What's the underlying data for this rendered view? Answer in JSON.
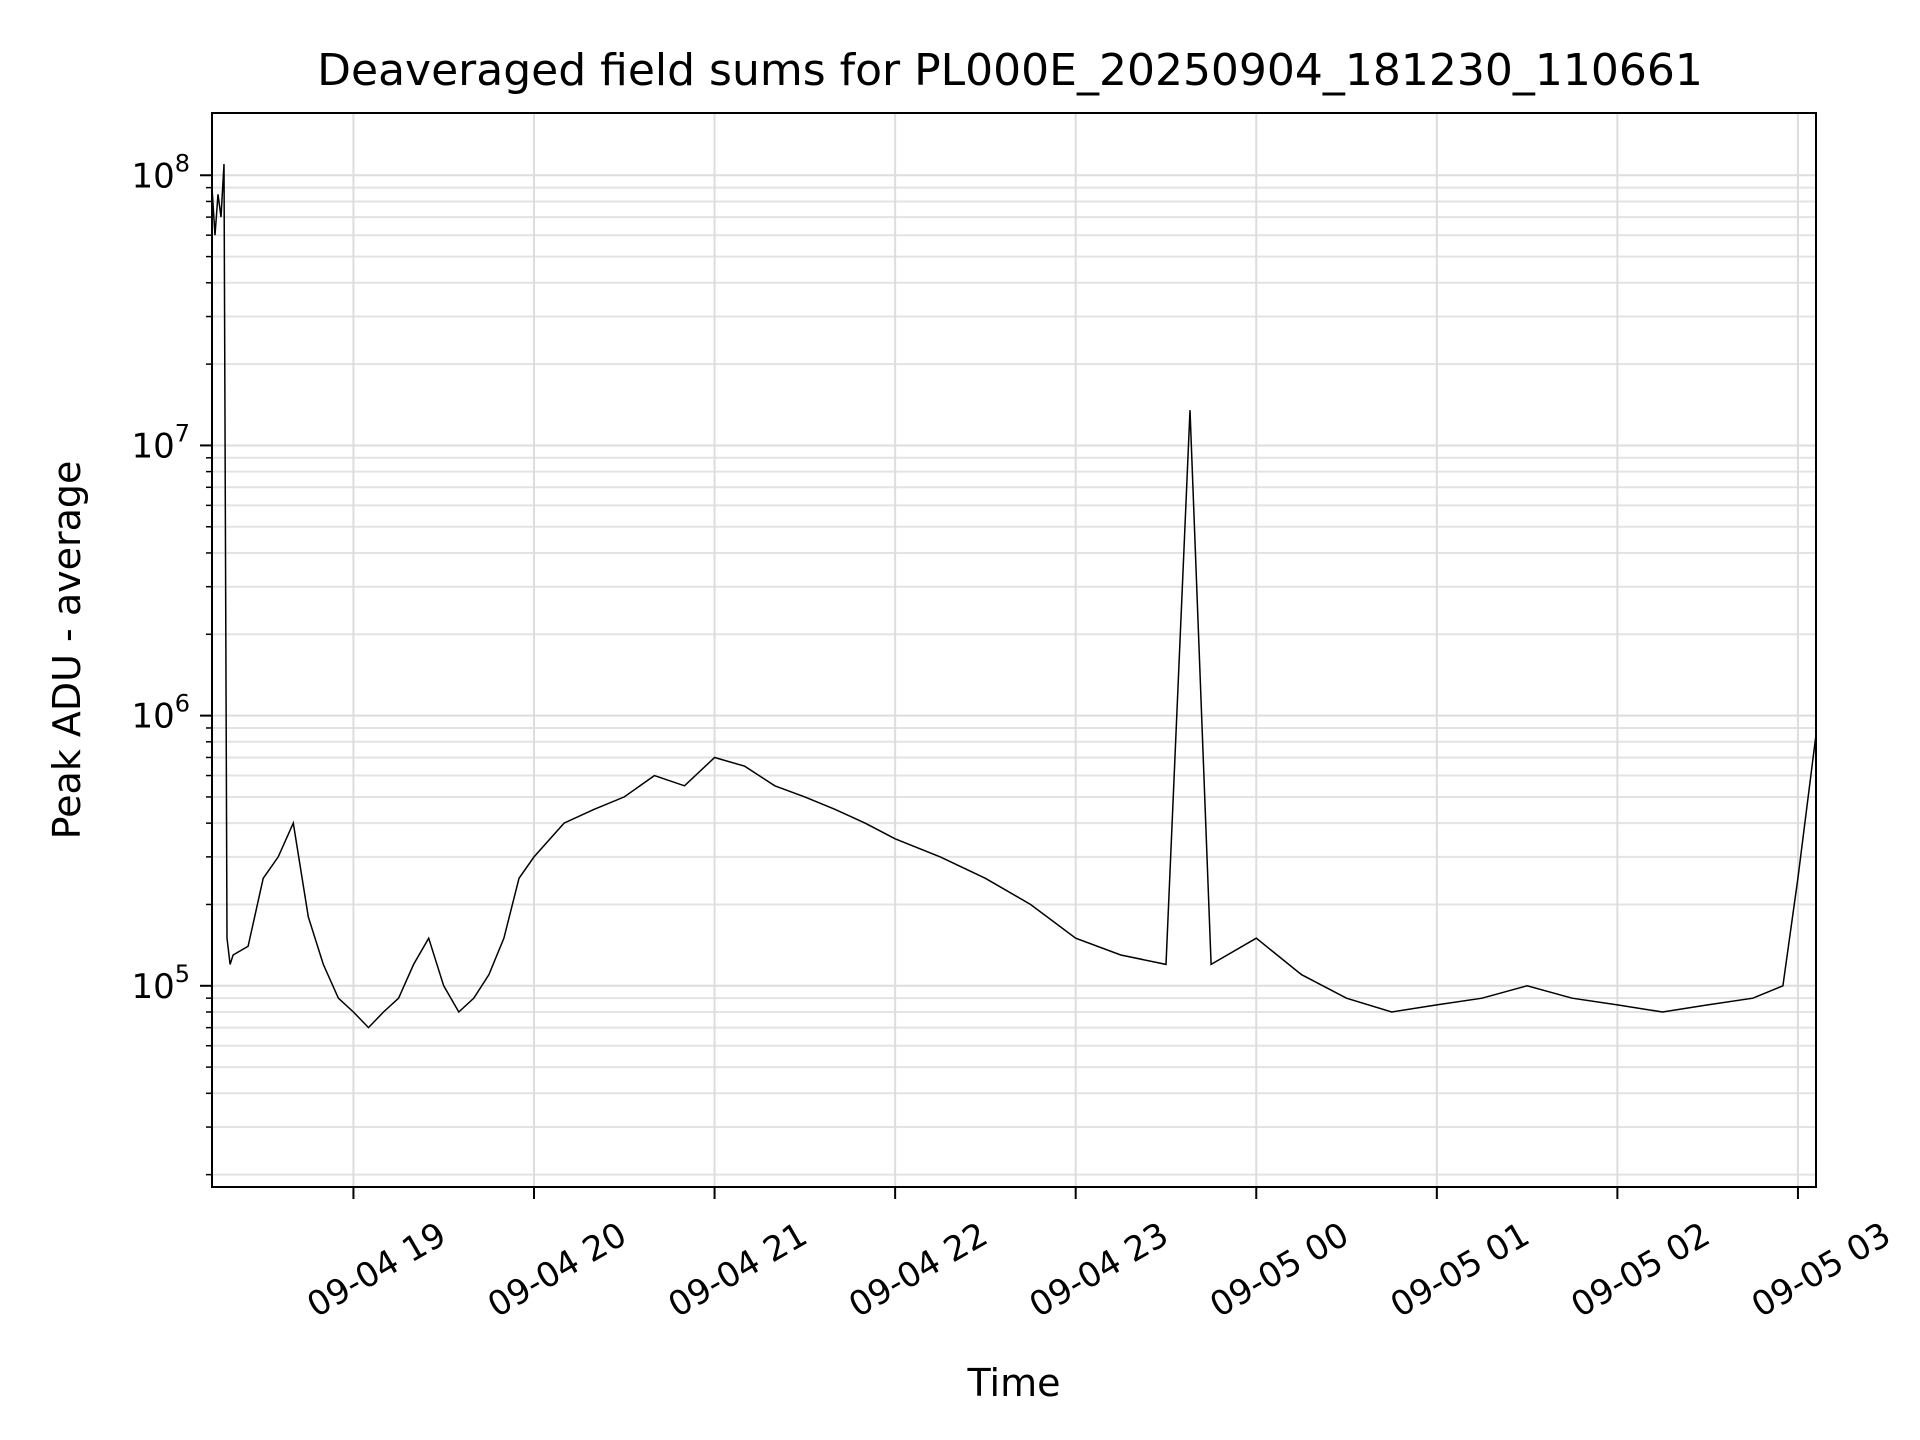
{
  "chart_data": {
    "type": "line",
    "title": "Deaveraged field sums for PL000E_20250904_181230_110661",
    "xlabel": "Time",
    "ylabel": "Peak ADU - average",
    "yscale": "log",
    "ylim": [
      18000,
      170000000
    ],
    "xlim": [
      "2025-09-04 18:13",
      "2025-09-05 03:06"
    ],
    "grid": true,
    "line_color": "#000000",
    "x_ticks": [
      "09-04 19",
      "09-04 20",
      "09-04 21",
      "09-04 22",
      "09-04 23",
      "09-05 00",
      "09-05 01",
      "09-05 02",
      "09-05 03"
    ],
    "y_ticks": [
      {
        "base": "10",
        "exp": "5",
        "value": 100000
      },
      {
        "base": "10",
        "exp": "6",
        "value": 1000000
      },
      {
        "base": "10",
        "exp": "7",
        "value": 10000000
      },
      {
        "base": "10",
        "exp": "8",
        "value": 100000000
      }
    ],
    "series": [
      {
        "x": [
          "2025-09-04 18:13",
          "2025-09-04 18:14",
          "2025-09-04 18:15",
          "2025-09-04 18:16",
          "2025-09-04 18:17",
          "2025-09-04 18:18",
          "2025-09-04 18:19",
          "2025-09-04 18:20",
          "2025-09-04 18:25",
          "2025-09-04 18:30",
          "2025-09-04 18:35",
          "2025-09-04 18:40",
          "2025-09-04 18:45",
          "2025-09-04 18:50",
          "2025-09-04 18:55",
          "2025-09-04 19:00",
          "2025-09-04 19:05",
          "2025-09-04 19:10",
          "2025-09-04 19:15",
          "2025-09-04 19:20",
          "2025-09-04 19:25",
          "2025-09-04 19:30",
          "2025-09-04 19:35",
          "2025-09-04 19:40",
          "2025-09-04 19:45",
          "2025-09-04 19:50",
          "2025-09-04 19:55",
          "2025-09-04 20:00",
          "2025-09-04 20:10",
          "2025-09-04 20:20",
          "2025-09-04 20:30",
          "2025-09-04 20:40",
          "2025-09-04 20:50",
          "2025-09-04 21:00",
          "2025-09-04 21:10",
          "2025-09-04 21:20",
          "2025-09-04 21:30",
          "2025-09-04 21:40",
          "2025-09-04 21:50",
          "2025-09-04 22:00",
          "2025-09-04 22:15",
          "2025-09-04 22:30",
          "2025-09-04 22:45",
          "2025-09-04 23:00",
          "2025-09-04 23:15",
          "2025-09-04 23:30",
          "2025-09-04 23:38",
          "2025-09-04 23:45",
          "2025-09-05 00:00",
          "2025-09-05 00:15",
          "2025-09-05 00:30",
          "2025-09-05 00:45",
          "2025-09-05 01:00",
          "2025-09-05 01:15",
          "2025-09-05 01:30",
          "2025-09-05 01:45",
          "2025-09-05 02:00",
          "2025-09-05 02:15",
          "2025-09-05 02:30",
          "2025-09-05 02:45",
          "2025-09-05 02:55",
          "2025-09-05 03:00",
          "2025-09-05 03:06"
        ],
        "y": [
          90000000,
          60000000,
          85000000,
          70000000,
          110000000,
          150000,
          120000,
          130000,
          140000,
          250000,
          300000,
          400000,
          180000,
          120000,
          90000,
          80000,
          70000,
          80000,
          90000,
          120000,
          150000,
          100000,
          80000,
          90000,
          110000,
          150000,
          250000,
          300000,
          400000,
          450000,
          500000,
          600000,
          550000,
          700000,
          650000,
          550000,
          500000,
          450000,
          400000,
          350000,
          300000,
          250000,
          200000,
          150000,
          130000,
          120000,
          13500000,
          120000,
          150000,
          110000,
          90000,
          80000,
          85000,
          90000,
          100000,
          90000,
          85000,
          80000,
          85000,
          90000,
          100000,
          250000,
          850000
        ]
      }
    ]
  }
}
